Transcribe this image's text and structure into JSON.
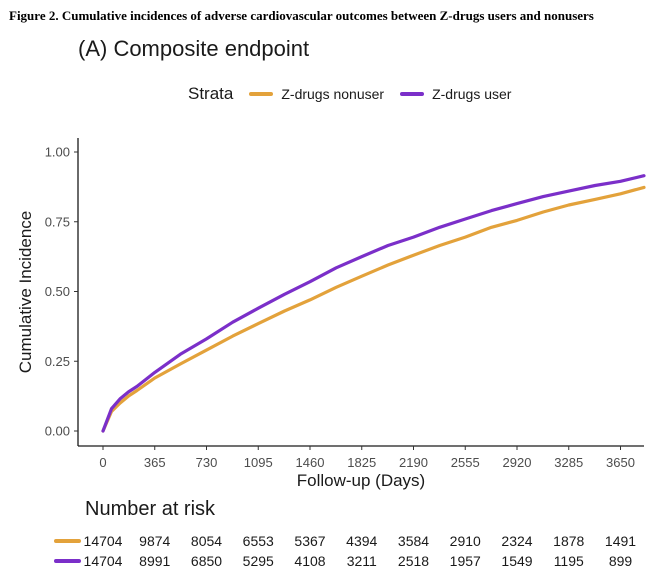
{
  "figure_caption": "Figure 2. Cumulative incidences of adverse cardiovascular outcomes between Z-drugs users and nonusers",
  "panel_title": "(A) Composite endpoint",
  "legend": {
    "title": "Strata",
    "items": [
      {
        "label": "Z-drugs nonuser",
        "color": "#E3A23B"
      },
      {
        "label": "Z-drugs user",
        "color": "#7B2FC9"
      }
    ]
  },
  "chart_data": {
    "type": "line",
    "title": "(A) Composite endpoint",
    "xlabel": "Follow-up (Days)",
    "ylabel": "Cumulative Incidence",
    "xlim": [
      0,
      3860
    ],
    "ylim": [
      0,
      1.0
    ],
    "x_ticks": [
      0,
      365,
      730,
      1095,
      1460,
      1825,
      2190,
      2555,
      2920,
      3285,
      3650
    ],
    "y_ticks": [
      0.0,
      0.25,
      0.5,
      0.75,
      1.0
    ],
    "y_tick_labels": [
      "0.00",
      "0.25",
      "0.50",
      "0.75",
      "1.00"
    ],
    "grid": false,
    "x": [
      0,
      60,
      120,
      180,
      240,
      365,
      545,
      730,
      915,
      1095,
      1280,
      1460,
      1645,
      1825,
      2010,
      2190,
      2375,
      2555,
      2740,
      2920,
      3105,
      3285,
      3470,
      3650,
      3860
    ],
    "series": [
      {
        "name": "Z-drugs nonuser",
        "color": "#E3A23B",
        "values": [
          0.0,
          0.07,
          0.1,
          0.125,
          0.145,
          0.19,
          0.24,
          0.29,
          0.34,
          0.385,
          0.43,
          0.47,
          0.515,
          0.555,
          0.595,
          0.63,
          0.665,
          0.695,
          0.73,
          0.755,
          0.785,
          0.81,
          0.83,
          0.85,
          0.873
        ]
      },
      {
        "name": "Z-drugs user",
        "color": "#7B2FC9",
        "values": [
          0.0,
          0.08,
          0.115,
          0.14,
          0.16,
          0.21,
          0.275,
          0.33,
          0.39,
          0.44,
          0.49,
          0.535,
          0.585,
          0.625,
          0.665,
          0.695,
          0.73,
          0.76,
          0.79,
          0.815,
          0.84,
          0.86,
          0.88,
          0.895,
          0.915
        ]
      }
    ]
  },
  "number_at_risk": {
    "title": "Number at risk",
    "rows": [
      {
        "name": "Z-drugs nonuser",
        "color": "#E3A23B",
        "values": [
          "14704",
          "9874",
          "8054",
          "6553",
          "5367",
          "4394",
          "3584",
          "2910",
          "2324",
          "1878",
          "1491"
        ]
      },
      {
        "name": "Z-drugs user",
        "color": "#7B2FC9",
        "values": [
          "14704",
          "8991",
          "6850",
          "5295",
          "4108",
          "3211",
          "2518",
          "1957",
          "1549",
          "1195",
          "899"
        ]
      }
    ]
  }
}
